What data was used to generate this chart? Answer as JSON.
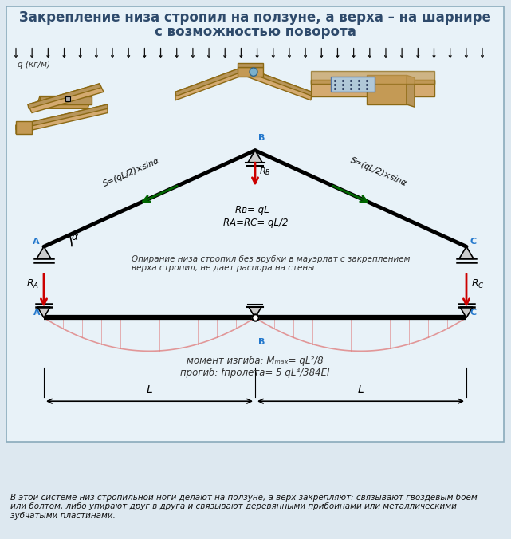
{
  "title_line1": "Закрепление низа стропил на ползуне, а верха – на шарнире",
  "title_line2": "с возможностью поворота",
  "title_color": "#2e4a6b",
  "bg_color": "#dde8f0",
  "box_bg": "#e8f2f8",
  "footer_text": "В этой системе низ стропильной ноги делают на ползуне, а верх закрепляют: связывают гвоздевым боем\nили болтом, либо упирают друг в друга и связывают деревянными прибоинами или металлическими\nзубчатыми пластинами.",
  "q_label": "q (кг/м)",
  "label_S": "S=(qL/2)×sinα",
  "label_RB_arrow": "Rв",
  "label_RB_eq": "Rв= qL",
  "label_RARC_eq": "RА=RС= qL/2",
  "label_RA": "RА",
  "label_RC": "RС",
  "label_alpha": "α",
  "support_text": "Опирание низа стропил без врубки в мауэрлат с закреплением\nверха стропил, не дает распора на стены",
  "moment_text": "момент изгиба: Mₘₐₓ= qL²/8",
  "deflect_text": "прогиб: fпролета= 5 qL⁴/384EI",
  "arrow_red": "#cc0000",
  "arrow_green": "#006600",
  "wood_color1": "#d4aa70",
  "wood_color2": "#c49a55",
  "wood_edge": "#8B6914",
  "support_blue": "#2277cc"
}
